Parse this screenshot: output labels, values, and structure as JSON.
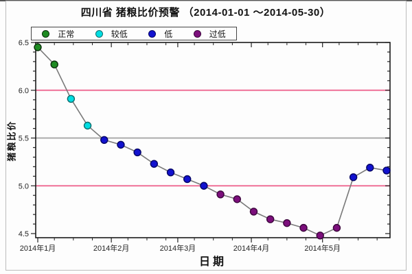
{
  "page": {
    "title": "四川省 猪粮比价预警 （2014-01-01 ～2014-05-30）"
  },
  "legend": {
    "items": [
      {
        "label": "正常",
        "color": "#1e8b22",
        "border": "#0a2d0a"
      },
      {
        "label": "较低",
        "color": "#00dde2",
        "border": "#0e6b6b"
      },
      {
        "label": "低",
        "color": "#1212cf",
        "border": "#050563"
      },
      {
        "label": "过低",
        "color": "#7c0f7c",
        "border": "#3c053c"
      }
    ]
  },
  "chart_data": {
    "type": "line",
    "title": "四川省 猪粮比价预警 （2014-01-01 ～2014-05-30）",
    "xlabel": "日期",
    "ylabel": "猪粮比价",
    "ylim": [
      4.45,
      6.5
    ],
    "y_major_ticks": [
      4.5,
      5.0,
      5.5,
      6.0,
      6.5
    ],
    "y_minor_step": 0.1,
    "x_ticks": [
      {
        "day": 0,
        "label": "2014年1月"
      },
      {
        "day": 31,
        "label": "2014年2月"
      },
      {
        "day": 59,
        "label": "2014年3月"
      },
      {
        "day": 90,
        "label": "2014年4月"
      },
      {
        "day": 120,
        "label": "2014年5月"
      }
    ],
    "x_minor_day_offsets": [
      7,
      15,
      23,
      38,
      46,
      54,
      66,
      74,
      82,
      97,
      105,
      113,
      127,
      135,
      143
    ],
    "reference_lines": [
      {
        "value": 6.0,
        "color": "#ef6f96"
      },
      {
        "value": 5.5,
        "color": "#ababab"
      },
      {
        "value": 5.0,
        "color": "#ef6f96"
      }
    ],
    "series_line_color": "#7a7a7a",
    "status_colors": {
      "正常": {
        "fill": "#1e8b22",
        "stroke": "#0a2d0a"
      },
      "较低": {
        "fill": "#00dde2",
        "stroke": "#0e6b6b"
      },
      "低": {
        "fill": "#1212cf",
        "stroke": "#050563"
      },
      "过低": {
        "fill": "#7c0f7c",
        "stroke": "#3c053c"
      }
    },
    "points": [
      {
        "date": "2014-01-01",
        "day": 0,
        "value": 6.45,
        "status": "正常"
      },
      {
        "date": "2014-01-08",
        "day": 7,
        "value": 6.27,
        "status": "正常"
      },
      {
        "date": "2014-01-15",
        "day": 14,
        "value": 5.91,
        "status": "较低"
      },
      {
        "date": "2014-01-22",
        "day": 21,
        "value": 5.63,
        "status": "较低"
      },
      {
        "date": "2014-01-29",
        "day": 28,
        "value": 5.48,
        "status": "低"
      },
      {
        "date": "2014-02-05",
        "day": 35,
        "value": 5.43,
        "status": "低"
      },
      {
        "date": "2014-02-12",
        "day": 42,
        "value": 5.35,
        "status": "低"
      },
      {
        "date": "2014-02-19",
        "day": 49,
        "value": 5.23,
        "status": "低"
      },
      {
        "date": "2014-02-26",
        "day": 56,
        "value": 5.14,
        "status": "低"
      },
      {
        "date": "2014-03-05",
        "day": 63,
        "value": 5.07,
        "status": "低"
      },
      {
        "date": "2014-03-12",
        "day": 70,
        "value": 5.0,
        "status": "低"
      },
      {
        "date": "2014-03-19",
        "day": 77,
        "value": 4.91,
        "status": "过低"
      },
      {
        "date": "2014-03-26",
        "day": 84,
        "value": 4.86,
        "status": "过低"
      },
      {
        "date": "2014-04-02",
        "day": 91,
        "value": 4.73,
        "status": "过低"
      },
      {
        "date": "2014-04-09",
        "day": 98,
        "value": 4.65,
        "status": "过低"
      },
      {
        "date": "2014-04-16",
        "day": 105,
        "value": 4.61,
        "status": "过低"
      },
      {
        "date": "2014-04-23",
        "day": 112,
        "value": 4.56,
        "status": "过低"
      },
      {
        "date": "2014-04-30",
        "day": 119,
        "value": 4.48,
        "status": "过低"
      },
      {
        "date": "2014-05-07",
        "day": 126,
        "value": 4.56,
        "status": "过低"
      },
      {
        "date": "2014-05-14",
        "day": 133,
        "value": 5.09,
        "status": "低"
      },
      {
        "date": "2014-05-21",
        "day": 140,
        "value": 5.19,
        "status": "低"
      },
      {
        "date": "2014-05-28",
        "day": 147,
        "value": 5.16,
        "status": "低"
      }
    ]
  }
}
